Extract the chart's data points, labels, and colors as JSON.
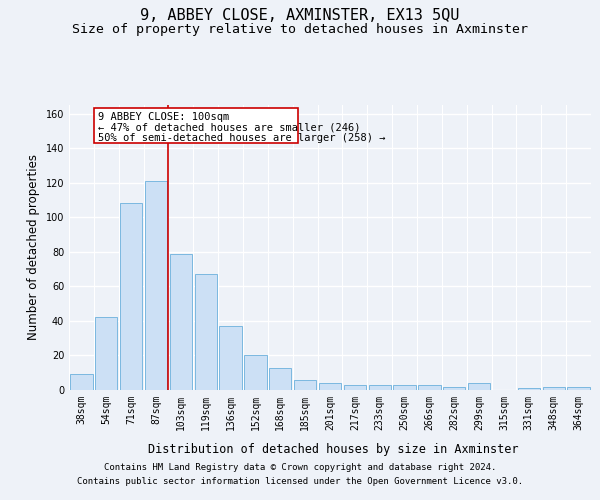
{
  "title": "9, ABBEY CLOSE, AXMINSTER, EX13 5QU",
  "subtitle": "Size of property relative to detached houses in Axminster",
  "xlabel": "Distribution of detached houses by size in Axminster",
  "ylabel": "Number of detached properties",
  "categories": [
    "38sqm",
    "54sqm",
    "71sqm",
    "87sqm",
    "103sqm",
    "119sqm",
    "136sqm",
    "152sqm",
    "168sqm",
    "185sqm",
    "201sqm",
    "217sqm",
    "233sqm",
    "250sqm",
    "266sqm",
    "282sqm",
    "299sqm",
    "315sqm",
    "331sqm",
    "348sqm",
    "364sqm"
  ],
  "values": [
    9,
    42,
    108,
    121,
    79,
    67,
    37,
    20,
    13,
    6,
    4,
    3,
    3,
    3,
    3,
    2,
    4,
    0,
    1,
    2,
    2
  ],
  "bar_color": "#cce0f5",
  "bar_edge_color": "#7ab8e0",
  "vline_x": 3.5,
  "vline_color": "#cc0000",
  "annotation_line1": "9 ABBEY CLOSE: 100sqm",
  "annotation_line2": "← 47% of detached houses are smaller (246)",
  "annotation_line3": "50% of semi-detached houses are larger (258) →",
  "ylim": [
    0,
    165
  ],
  "yticks": [
    0,
    20,
    40,
    60,
    80,
    100,
    120,
    140,
    160
  ],
  "bg_color": "#eef2f8",
  "grid_color": "#ffffff",
  "title_fontsize": 11,
  "subtitle_fontsize": 9.5,
  "axis_label_fontsize": 8.5,
  "tick_fontsize": 7,
  "annotation_fontsize": 7.5,
  "footer_fontsize": 6.5,
  "footer_line1": "Contains HM Land Registry data © Crown copyright and database right 2024.",
  "footer_line2": "Contains public sector information licensed under the Open Government Licence v3.0."
}
